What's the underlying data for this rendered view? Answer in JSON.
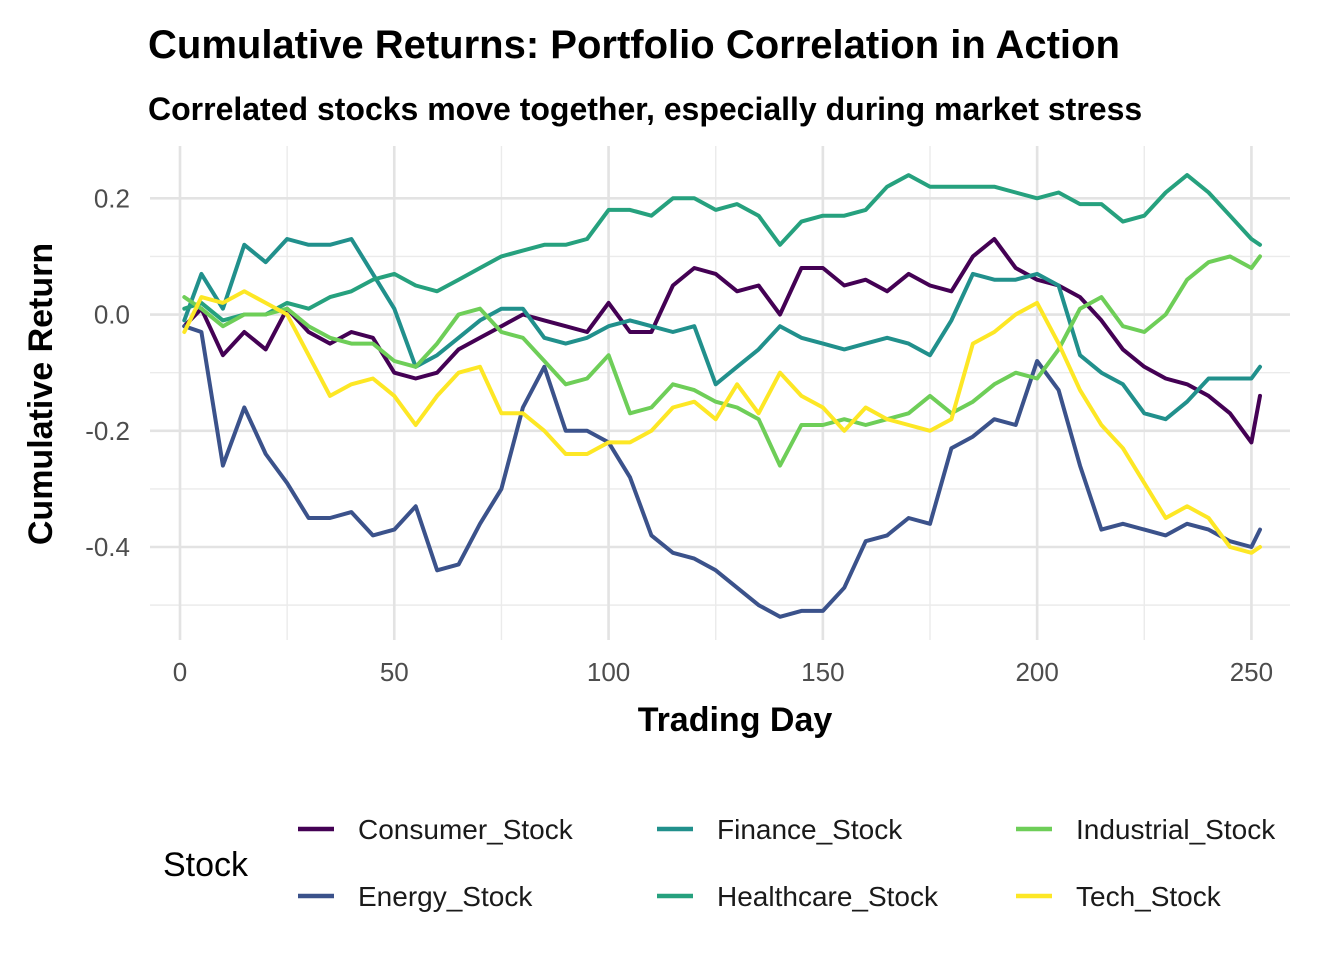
{
  "chart_data": {
    "type": "line",
    "title": "Cumulative Returns: Portfolio Correlation in Action",
    "subtitle": "Correlated stocks move together, especially during market stress",
    "xlabel": "Trading Day",
    "ylabel": "Cumulative Return",
    "xlim": [
      -7,
      259
    ],
    "ylim": [
      -0.56,
      0.29
    ],
    "x_ticks": [
      0,
      50,
      100,
      150,
      200,
      250
    ],
    "x_tick_labels": [
      "0",
      "50",
      "100",
      "150",
      "200",
      "250"
    ],
    "y_ticks": [
      -0.4,
      -0.2,
      0.0,
      0.2
    ],
    "y_tick_labels": [
      "-0.4",
      "-0.2",
      "0.0",
      "0.2"
    ],
    "grid": true,
    "legend": {
      "title": "Stock",
      "position": "bottom"
    },
    "series": [
      {
        "name": "Consumer_Stock",
        "color": "#440154",
        "points": [
          [
            1,
            -0.02
          ],
          [
            5,
            0.01
          ],
          [
            10,
            -0.07
          ],
          [
            15,
            -0.03
          ],
          [
            20,
            -0.06
          ],
          [
            25,
            0.01
          ],
          [
            30,
            -0.03
          ],
          [
            35,
            -0.05
          ],
          [
            40,
            -0.03
          ],
          [
            45,
            -0.04
          ],
          [
            50,
            -0.1
          ],
          [
            55,
            -0.11
          ],
          [
            60,
            -0.1
          ],
          [
            65,
            -0.06
          ],
          [
            70,
            -0.04
          ],
          [
            75,
            -0.02
          ],
          [
            80,
            0.0
          ],
          [
            85,
            -0.01
          ],
          [
            90,
            -0.02
          ],
          [
            95,
            -0.03
          ],
          [
            100,
            0.02
          ],
          [
            105,
            -0.03
          ],
          [
            110,
            -0.03
          ],
          [
            115,
            0.05
          ],
          [
            120,
            0.08
          ],
          [
            125,
            0.07
          ],
          [
            130,
            0.04
          ],
          [
            135,
            0.05
          ],
          [
            140,
            0.0
          ],
          [
            145,
            0.08
          ],
          [
            150,
            0.08
          ],
          [
            155,
            0.05
          ],
          [
            160,
            0.06
          ],
          [
            165,
            0.04
          ],
          [
            170,
            0.07
          ],
          [
            175,
            0.05
          ],
          [
            180,
            0.04
          ],
          [
            185,
            0.1
          ],
          [
            190,
            0.13
          ],
          [
            195,
            0.08
          ],
          [
            200,
            0.06
          ],
          [
            205,
            0.05
          ],
          [
            210,
            0.03
          ],
          [
            215,
            -0.01
          ],
          [
            220,
            -0.06
          ],
          [
            225,
            -0.09
          ],
          [
            230,
            -0.11
          ],
          [
            235,
            -0.12
          ],
          [
            240,
            -0.14
          ],
          [
            245,
            -0.17
          ],
          [
            250,
            -0.22
          ],
          [
            252,
            -0.14
          ]
        ]
      },
      {
        "name": "Energy_Stock",
        "color": "#3b528b",
        "points": [
          [
            1,
            -0.02
          ],
          [
            5,
            -0.03
          ],
          [
            10,
            -0.26
          ],
          [
            15,
            -0.16
          ],
          [
            20,
            -0.24
          ],
          [
            25,
            -0.29
          ],
          [
            30,
            -0.35
          ],
          [
            35,
            -0.35
          ],
          [
            40,
            -0.34
          ],
          [
            45,
            -0.38
          ],
          [
            50,
            -0.37
          ],
          [
            55,
            -0.33
          ],
          [
            60,
            -0.44
          ],
          [
            65,
            -0.43
          ],
          [
            70,
            -0.36
          ],
          [
            75,
            -0.3
          ],
          [
            80,
            -0.16
          ],
          [
            85,
            -0.09
          ],
          [
            90,
            -0.2
          ],
          [
            95,
            -0.2
          ],
          [
            100,
            -0.22
          ],
          [
            105,
            -0.28
          ],
          [
            110,
            -0.38
          ],
          [
            115,
            -0.41
          ],
          [
            120,
            -0.42
          ],
          [
            125,
            -0.44
          ],
          [
            130,
            -0.47
          ],
          [
            135,
            -0.5
          ],
          [
            140,
            -0.52
          ],
          [
            145,
            -0.51
          ],
          [
            150,
            -0.51
          ],
          [
            155,
            -0.47
          ],
          [
            160,
            -0.39
          ],
          [
            165,
            -0.38
          ],
          [
            170,
            -0.35
          ],
          [
            175,
            -0.36
          ],
          [
            180,
            -0.23
          ],
          [
            185,
            -0.21
          ],
          [
            190,
            -0.18
          ],
          [
            195,
            -0.19
          ],
          [
            200,
            -0.08
          ],
          [
            205,
            -0.13
          ],
          [
            210,
            -0.26
          ],
          [
            215,
            -0.37
          ],
          [
            220,
            -0.36
          ],
          [
            225,
            -0.37
          ],
          [
            230,
            -0.38
          ],
          [
            235,
            -0.36
          ],
          [
            240,
            -0.37
          ],
          [
            245,
            -0.39
          ],
          [
            250,
            -0.4
          ],
          [
            252,
            -0.37
          ]
        ]
      },
      {
        "name": "Finance_Stock",
        "color": "#21908c",
        "points": [
          [
            1,
            -0.01
          ],
          [
            5,
            0.07
          ],
          [
            10,
            0.01
          ],
          [
            15,
            0.12
          ],
          [
            20,
            0.09
          ],
          [
            25,
            0.13
          ],
          [
            30,
            0.12
          ],
          [
            35,
            0.12
          ],
          [
            40,
            0.13
          ],
          [
            45,
            0.07
          ],
          [
            50,
            0.01
          ],
          [
            55,
            -0.09
          ],
          [
            60,
            -0.07
          ],
          [
            65,
            -0.04
          ],
          [
            70,
            -0.01
          ],
          [
            75,
            0.01
          ],
          [
            80,
            0.01
          ],
          [
            85,
            -0.04
          ],
          [
            90,
            -0.05
          ],
          [
            95,
            -0.04
          ],
          [
            100,
            -0.02
          ],
          [
            105,
            -0.01
          ],
          [
            110,
            -0.02
          ],
          [
            115,
            -0.03
          ],
          [
            120,
            -0.02
          ],
          [
            125,
            -0.12
          ],
          [
            130,
            -0.09
          ],
          [
            135,
            -0.06
          ],
          [
            140,
            -0.02
          ],
          [
            145,
            -0.04
          ],
          [
            150,
            -0.05
          ],
          [
            155,
            -0.06
          ],
          [
            160,
            -0.05
          ],
          [
            165,
            -0.04
          ],
          [
            170,
            -0.05
          ],
          [
            175,
            -0.07
          ],
          [
            180,
            -0.01
          ],
          [
            185,
            0.07
          ],
          [
            190,
            0.06
          ],
          [
            195,
            0.06
          ],
          [
            200,
            0.07
          ],
          [
            205,
            0.05
          ],
          [
            210,
            -0.07
          ],
          [
            215,
            -0.1
          ],
          [
            220,
            -0.12
          ],
          [
            225,
            -0.17
          ],
          [
            230,
            -0.18
          ],
          [
            235,
            -0.15
          ],
          [
            240,
            -0.11
          ],
          [
            245,
            -0.11
          ],
          [
            250,
            -0.11
          ],
          [
            252,
            -0.09
          ]
        ]
      },
      {
        "name": "Healthcare_Stock",
        "color": "#26a17e",
        "points": [
          [
            1,
            0.01
          ],
          [
            5,
            0.02
          ],
          [
            10,
            -0.01
          ],
          [
            15,
            0.0
          ],
          [
            20,
            0.0
          ],
          [
            25,
            0.02
          ],
          [
            30,
            0.01
          ],
          [
            35,
            0.03
          ],
          [
            40,
            0.04
          ],
          [
            45,
            0.06
          ],
          [
            50,
            0.07
          ],
          [
            55,
            0.05
          ],
          [
            60,
            0.04
          ],
          [
            65,
            0.06
          ],
          [
            70,
            0.08
          ],
          [
            75,
            0.1
          ],
          [
            80,
            0.11
          ],
          [
            85,
            0.12
          ],
          [
            90,
            0.12
          ],
          [
            95,
            0.13
          ],
          [
            100,
            0.18
          ],
          [
            105,
            0.18
          ],
          [
            110,
            0.17
          ],
          [
            115,
            0.2
          ],
          [
            120,
            0.2
          ],
          [
            125,
            0.18
          ],
          [
            130,
            0.19
          ],
          [
            135,
            0.17
          ],
          [
            140,
            0.12
          ],
          [
            145,
            0.16
          ],
          [
            150,
            0.17
          ],
          [
            155,
            0.17
          ],
          [
            160,
            0.18
          ],
          [
            165,
            0.22
          ],
          [
            170,
            0.24
          ],
          [
            175,
            0.22
          ],
          [
            180,
            0.22
          ],
          [
            185,
            0.22
          ],
          [
            190,
            0.22
          ],
          [
            195,
            0.21
          ],
          [
            200,
            0.2
          ],
          [
            205,
            0.21
          ],
          [
            210,
            0.19
          ],
          [
            215,
            0.19
          ],
          [
            220,
            0.16
          ],
          [
            225,
            0.17
          ],
          [
            230,
            0.21
          ],
          [
            235,
            0.24
          ],
          [
            240,
            0.21
          ],
          [
            245,
            0.17
          ],
          [
            250,
            0.13
          ],
          [
            252,
            0.12
          ]
        ]
      },
      {
        "name": "Industrial_Stock",
        "color": "#6ece58",
        "points": [
          [
            1,
            0.03
          ],
          [
            5,
            0.01
          ],
          [
            10,
            -0.02
          ],
          [
            15,
            0.0
          ],
          [
            20,
            0.0
          ],
          [
            25,
            0.01
          ],
          [
            30,
            -0.02
          ],
          [
            35,
            -0.04
          ],
          [
            40,
            -0.05
          ],
          [
            45,
            -0.05
          ],
          [
            50,
            -0.08
          ],
          [
            55,
            -0.09
          ],
          [
            60,
            -0.05
          ],
          [
            65,
            0.0
          ],
          [
            70,
            0.01
          ],
          [
            75,
            -0.03
          ],
          [
            80,
            -0.04
          ],
          [
            85,
            -0.08
          ],
          [
            90,
            -0.12
          ],
          [
            95,
            -0.11
          ],
          [
            100,
            -0.07
          ],
          [
            105,
            -0.17
          ],
          [
            110,
            -0.16
          ],
          [
            115,
            -0.12
          ],
          [
            120,
            -0.13
          ],
          [
            125,
            -0.15
          ],
          [
            130,
            -0.16
          ],
          [
            135,
            -0.18
          ],
          [
            140,
            -0.26
          ],
          [
            145,
            -0.19
          ],
          [
            150,
            -0.19
          ],
          [
            155,
            -0.18
          ],
          [
            160,
            -0.19
          ],
          [
            165,
            -0.18
          ],
          [
            170,
            -0.17
          ],
          [
            175,
            -0.14
          ],
          [
            180,
            -0.17
          ],
          [
            185,
            -0.15
          ],
          [
            190,
            -0.12
          ],
          [
            195,
            -0.1
          ],
          [
            200,
            -0.11
          ],
          [
            205,
            -0.06
          ],
          [
            210,
            0.01
          ],
          [
            215,
            0.03
          ],
          [
            220,
            -0.02
          ],
          [
            225,
            -0.03
          ],
          [
            230,
            0.0
          ],
          [
            235,
            0.06
          ],
          [
            240,
            0.09
          ],
          [
            245,
            0.1
          ],
          [
            250,
            0.08
          ],
          [
            252,
            0.1
          ]
        ]
      },
      {
        "name": "Tech_Stock",
        "color": "#fde725",
        "points": [
          [
            1,
            -0.03
          ],
          [
            5,
            0.03
          ],
          [
            10,
            0.02
          ],
          [
            15,
            0.04
          ],
          [
            20,
            0.02
          ],
          [
            25,
            0.0
          ],
          [
            30,
            -0.07
          ],
          [
            35,
            -0.14
          ],
          [
            40,
            -0.12
          ],
          [
            45,
            -0.11
          ],
          [
            50,
            -0.14
          ],
          [
            55,
            -0.19
          ],
          [
            60,
            -0.14
          ],
          [
            65,
            -0.1
          ],
          [
            70,
            -0.09
          ],
          [
            75,
            -0.17
          ],
          [
            80,
            -0.17
          ],
          [
            85,
            -0.2
          ],
          [
            90,
            -0.24
          ],
          [
            95,
            -0.24
          ],
          [
            100,
            -0.22
          ],
          [
            105,
            -0.22
          ],
          [
            110,
            -0.2
          ],
          [
            115,
            -0.16
          ],
          [
            120,
            -0.15
          ],
          [
            125,
            -0.18
          ],
          [
            130,
            -0.12
          ],
          [
            135,
            -0.17
          ],
          [
            140,
            -0.1
          ],
          [
            145,
            -0.14
          ],
          [
            150,
            -0.16
          ],
          [
            155,
            -0.2
          ],
          [
            160,
            -0.16
          ],
          [
            165,
            -0.18
          ],
          [
            170,
            -0.19
          ],
          [
            175,
            -0.2
          ],
          [
            180,
            -0.18
          ],
          [
            185,
            -0.05
          ],
          [
            190,
            -0.03
          ],
          [
            195,
            0.0
          ],
          [
            200,
            0.02
          ],
          [
            205,
            -0.05
          ],
          [
            210,
            -0.13
          ],
          [
            215,
            -0.19
          ],
          [
            220,
            -0.23
          ],
          [
            225,
            -0.29
          ],
          [
            230,
            -0.35
          ],
          [
            235,
            -0.33
          ],
          [
            240,
            -0.35
          ],
          [
            245,
            -0.4
          ],
          [
            250,
            -0.41
          ],
          [
            252,
            -0.4
          ]
        ]
      }
    ]
  }
}
